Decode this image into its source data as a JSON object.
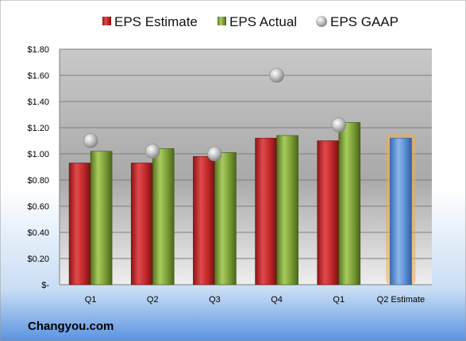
{
  "watermark": "Changyou.com",
  "colors": {
    "estimate": "#c0282a",
    "actual": "#7fa23a",
    "gaap": "#b9b9b9",
    "highlight_bar": "#5b8fd6",
    "highlight_glow": "#f0a94a"
  },
  "chart_data": {
    "type": "bar",
    "categories": [
      "Q1",
      "Q2",
      "Q3",
      "Q4",
      "Q1",
      "Q2 Estimate"
    ],
    "series": [
      {
        "name": "EPS Estimate",
        "values": [
          0.93,
          0.93,
          0.98,
          1.12,
          1.1,
          null
        ]
      },
      {
        "name": "EPS Actual",
        "values": [
          1.02,
          1.04,
          1.01,
          1.14,
          1.24,
          null
        ]
      },
      {
        "name": "EPS GAAP",
        "values": [
          1.1,
          1.02,
          1.0,
          1.6,
          1.22,
          null
        ]
      }
    ],
    "forecast": {
      "category": "Q2 Estimate",
      "value": 1.12
    },
    "ylim": [
      0,
      1.8
    ],
    "yticks": [
      0,
      0.2,
      0.4,
      0.6,
      0.8,
      1.0,
      1.2,
      1.4,
      1.6,
      1.8
    ],
    "ytick_labels": [
      "$-",
      "$0.20",
      "$0.40",
      "$0.60",
      "$0.80",
      "$1.00",
      "$1.20",
      "$1.40",
      "$1.60",
      "$1.80"
    ],
    "grid": true,
    "legend_position": "top",
    "xlabel": "",
    "ylabel": ""
  }
}
